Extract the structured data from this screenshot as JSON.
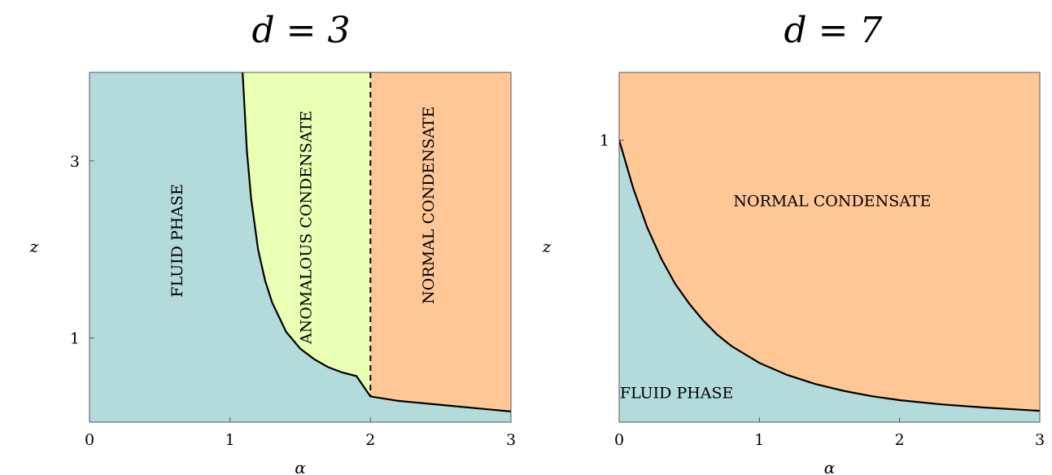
{
  "chart_data": [
    {
      "type": "area",
      "title": "d = 3",
      "xlabel": "α",
      "ylabel": "z",
      "xlim": [
        0,
        3
      ],
      "ylim": [
        0.05,
        4.0
      ],
      "xticks": [
        0,
        1,
        2,
        3
      ],
      "yticks": [
        1,
        3
      ],
      "grid": false,
      "colors": {
        "fluid": "#b3dbdb",
        "anomalous": "#e9ffb3",
        "normal": "#ffc796"
      },
      "boundary": {
        "name": "",
        "x": [
          1.09,
          1.12,
          1.15,
          1.2,
          1.25,
          1.3,
          1.4,
          1.5,
          1.6,
          1.7,
          1.8,
          1.9,
          2.0,
          2.2,
          2.4,
          2.6,
          2.8,
          3.0
        ],
        "y": [
          4.0,
          3.12,
          2.58,
          2.0,
          1.65,
          1.4,
          1.07,
          0.88,
          0.76,
          0.67,
          0.61,
          0.57,
          0.34,
          0.29,
          0.26,
          0.23,
          0.2,
          0.17
        ]
      },
      "anomalous_curve": {
        "x": [
          1.09,
          1.12,
          1.15,
          1.2,
          1.25,
          1.3,
          1.4,
          1.5,
          1.6,
          1.7,
          1.8,
          1.9,
          2.0
        ],
        "y": [
          4.0,
          3.12,
          2.58,
          2.0,
          1.65,
          1.4,
          1.07,
          0.88,
          0.76,
          0.67,
          0.61,
          0.57,
          0.34
        ]
      },
      "dashed_line_x": 2,
      "regions": [
        {
          "label": "FLUID PHASE",
          "x": 0.63,
          "y": 2.1,
          "rotate": true
        },
        {
          "label": "ANOMALOUS CONDENSATE",
          "x": 1.55,
          "y": 2.25,
          "rotate": true
        },
        {
          "label": "NORMAL CONDENSATE",
          "x": 2.42,
          "y": 2.5,
          "rotate": true
        }
      ]
    },
    {
      "type": "area",
      "title": "d = 7",
      "xlabel": "α",
      "ylabel": "z",
      "xlim": [
        0,
        3
      ],
      "ylim": [
        0.0,
        1.24
      ],
      "xticks": [
        0,
        1,
        2,
        3
      ],
      "yticks": [
        1
      ],
      "grid": false,
      "colors": {
        "fluid": "#b3dbdb",
        "normal": "#ffc796"
      },
      "boundary": {
        "name": "",
        "x": [
          0,
          0.1,
          0.2,
          0.3,
          0.4,
          0.5,
          0.6,
          0.7,
          0.8,
          1.0,
          1.2,
          1.4,
          1.6,
          1.8,
          2.0,
          2.3,
          2.6,
          3.0
        ],
        "y": [
          1.0,
          0.83,
          0.69,
          0.58,
          0.49,
          0.42,
          0.36,
          0.31,
          0.27,
          0.21,
          0.167,
          0.135,
          0.111,
          0.092,
          0.078,
          0.063,
          0.052,
          0.04
        ]
      },
      "regions": [
        {
          "label": "NORMAL CONDENSATE",
          "x": 1.52,
          "y": 0.78,
          "rotate": false
        },
        {
          "label": "FLUID PHASE",
          "x": 0.41,
          "y": 0.1,
          "rotate": false
        }
      ]
    }
  ]
}
